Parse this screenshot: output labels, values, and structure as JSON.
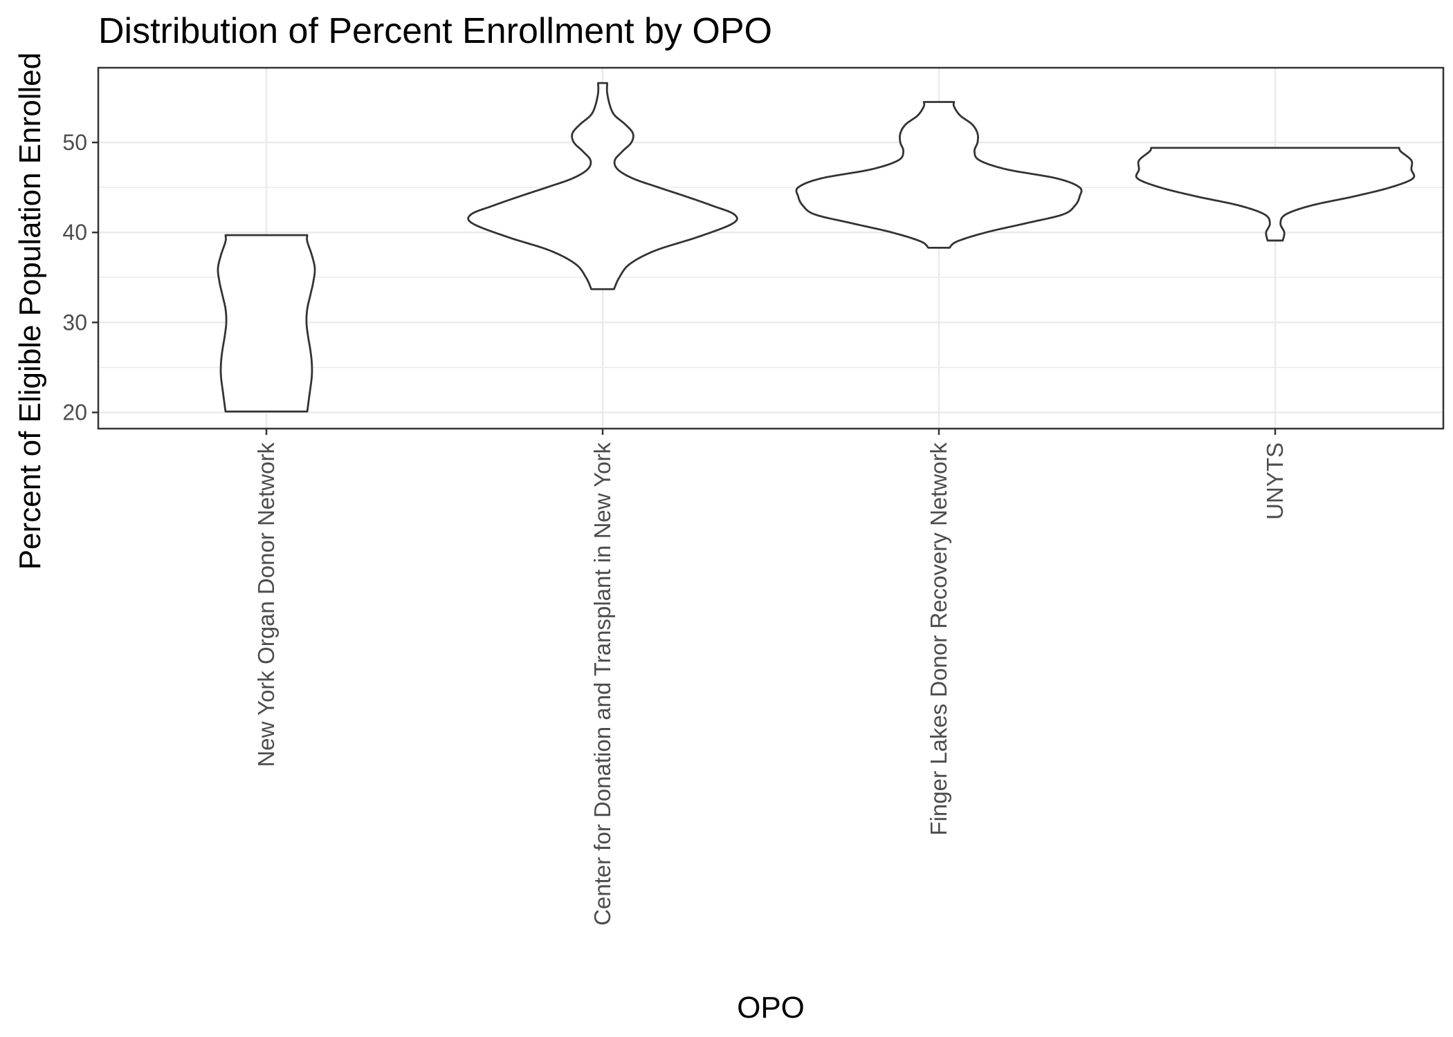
{
  "chart_data": {
    "type": "violin",
    "title": "Distribution of Percent Enrollment by OPO",
    "xlabel": "OPO",
    "ylabel": "Percent of Eligible Population Enrolled",
    "ylim": [
      18.2,
      58.3
    ],
    "yticks": [
      20,
      30,
      40,
      50
    ],
    "grid": true,
    "legend": "none",
    "colors": {
      "outline": "#333333",
      "fill": "#ffffff",
      "grid": "#ebebeb",
      "panel_border": "#333333"
    },
    "categories": [
      "New York Organ Donor Network",
      "Center for Donation and Transplant in New York",
      "Finger Lakes Donor Recovery Network",
      "UNYTS"
    ],
    "series": [
      {
        "category": "New York Organ Donor Network",
        "min": 20.1,
        "max": 39.7,
        "profile": [
          [
            20.1,
            0.27
          ],
          [
            22,
            0.285
          ],
          [
            24,
            0.3
          ],
          [
            25.5,
            0.3
          ],
          [
            27,
            0.29
          ],
          [
            28.5,
            0.275
          ],
          [
            30,
            0.265
          ],
          [
            31.5,
            0.27
          ],
          [
            33,
            0.29
          ],
          [
            34.5,
            0.31
          ],
          [
            36,
            0.32
          ],
          [
            37.5,
            0.3
          ],
          [
            39,
            0.27
          ],
          [
            39.7,
            0.27
          ]
        ]
      },
      {
        "category": "Center for Donation and Transplant in New York",
        "min": 33.7,
        "max": 56.6,
        "profile": [
          [
            33.7,
            0.075
          ],
          [
            35,
            0.11
          ],
          [
            36.5,
            0.18
          ],
          [
            38,
            0.35
          ],
          [
            39.5,
            0.63
          ],
          [
            41,
            0.86
          ],
          [
            42,
            0.87
          ],
          [
            43,
            0.72
          ],
          [
            44,
            0.55
          ],
          [
            45,
            0.37
          ],
          [
            46,
            0.2
          ],
          [
            47,
            0.1
          ],
          [
            48,
            0.08
          ],
          [
            49,
            0.13
          ],
          [
            50,
            0.19
          ],
          [
            51,
            0.2
          ],
          [
            52,
            0.15
          ],
          [
            53,
            0.08
          ],
          [
            54,
            0.05
          ],
          [
            55.5,
            0.03
          ],
          [
            56.6,
            0.03
          ]
        ]
      },
      {
        "category": "Finger Lakes Donor Recovery Network",
        "min": 38.3,
        "max": 54.5,
        "profile": [
          [
            38.3,
            0.07
          ],
          [
            39,
            0.12
          ],
          [
            40,
            0.31
          ],
          [
            41,
            0.57
          ],
          [
            42,
            0.82
          ],
          [
            43,
            0.9
          ],
          [
            44,
            0.93
          ],
          [
            45,
            0.93
          ],
          [
            46,
            0.78
          ],
          [
            47,
            0.45
          ],
          [
            48,
            0.27
          ],
          [
            49,
            0.235
          ],
          [
            50,
            0.255
          ],
          [
            51,
            0.255
          ],
          [
            52,
            0.22
          ],
          [
            53,
            0.14
          ],
          [
            54,
            0.1
          ],
          [
            54.5,
            0.1
          ]
        ]
      },
      {
        "category": "UNYTS",
        "min": 39.1,
        "max": 49.4,
        "profile": [
          [
            39.1,
            0.05
          ],
          [
            40,
            0.06
          ],
          [
            41,
            0.035
          ],
          [
            42,
            0.07
          ],
          [
            43,
            0.24
          ],
          [
            44,
            0.52
          ],
          [
            45,
            0.76
          ],
          [
            46,
            0.91
          ],
          [
            47,
            0.9
          ],
          [
            48,
            0.9
          ],
          [
            49,
            0.83
          ],
          [
            49.4,
            0.82
          ]
        ]
      }
    ]
  }
}
